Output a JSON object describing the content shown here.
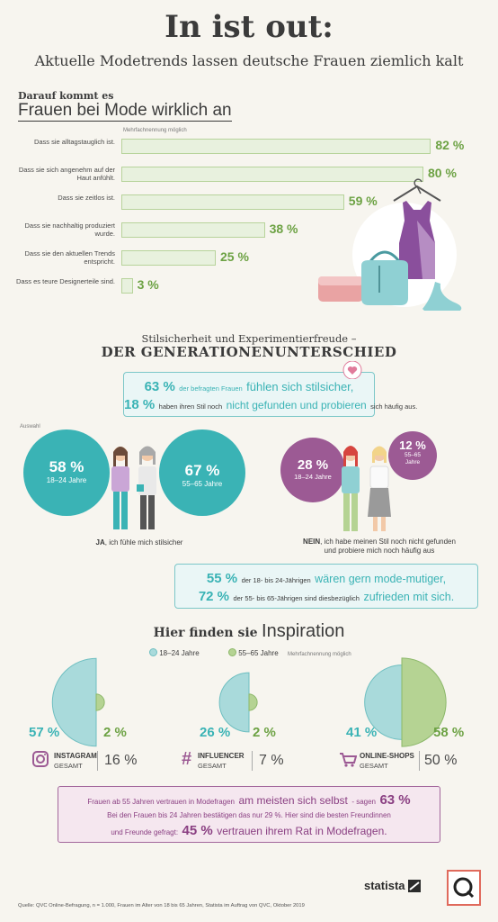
{
  "header": {
    "title": "In ist out:",
    "subtitle": "Aktuelle Modetrends lassen deutsche Frauen ziemlich kalt"
  },
  "section1": {
    "heading_small": "Darauf kommt es",
    "heading_large": "Frauen bei Mode wirklich an",
    "note": "Mehrfachnennung möglich"
  },
  "colors": {
    "green": "#6da244",
    "bar_fill": "#e8f1de",
    "teal": "#3ab3b5",
    "teal_light": "#a9dadb",
    "purple": "#9c5a94",
    "green_light": "#b5d393",
    "coral": "#e06a5c"
  },
  "chart_data": [
    {
      "type": "bar",
      "orientation": "horizontal",
      "title": "Frauen bei Mode wirklich an",
      "categories": [
        "Dass sie alltagstauglich ist.",
        "Dass sie sich angenehm auf der Haut anfühlt.",
        "Dass sie zeitlos ist.",
        "Dass sie nachhaltig produziert wurde.",
        "Dass sie den aktuellen Trends entspricht.",
        "Dass es teure Designerteile sind."
      ],
      "values": [
        82,
        80,
        59,
        38,
        25,
        3
      ],
      "labels": [
        "82 %",
        "80 %",
        "59 %",
        "38 %",
        "25 %",
        "3 %"
      ],
      "xlim": [
        0,
        100
      ]
    },
    {
      "type": "pie",
      "title": "Hier finden sie Inspiration",
      "categories": [
        "Instagram",
        "Influencer",
        "Online-Shops"
      ],
      "series": [
        {
          "name": "18-24 Jahre",
          "values": [
            57,
            26,
            41
          ],
          "labels": [
            "57 %",
            "26 %",
            "41 %"
          ]
        },
        {
          "name": "55-65 Jahre",
          "values": [
            2,
            2,
            58
          ],
          "labels": [
            "2 %",
            "2 %",
            "58 %"
          ]
        }
      ],
      "total_values": [
        16,
        7,
        50
      ],
      "total_labels": [
        "16 %",
        "7 %",
        "50 %"
      ]
    }
  ],
  "section2": {
    "heading_small": "Stilsicherheit und Experimentierfreude –",
    "heading_large": "DER GENERATIONENUNTERSCHIED",
    "callout": {
      "line1_pct": "63 %",
      "line1_small": "der befragten Frauen",
      "line1_big": "fühlen sich stilsicher,",
      "line2_pct": "18 %",
      "line2_small1": "haben ihren Stil noch",
      "line2_big": "nicht gefunden und probieren",
      "line2_small2": "sich häufig aus."
    },
    "auswahl": "Auswahl",
    "yes_young_pct": "58 %",
    "yes_young_age": "18–24 Jahre",
    "yes_old_pct": "67 %",
    "yes_old_age": "55–65 Jahre",
    "yes_caption_bold": "JA",
    "yes_caption": ", ich fühle mich stilsicher",
    "no_young_pct": "28 %",
    "no_young_age": "18–24 Jahre",
    "no_old_pct": "12 %",
    "no_old_age_1": "55–65",
    "no_old_age_2": "Jahre",
    "no_caption_bold": "NEIN",
    "no_caption_1": ", ich habe meinen Stil noch nicht gefunden",
    "no_caption_2": "und probiere mich noch häufig aus",
    "callout2": {
      "line1_pct": "55 %",
      "line1_small": "der 18- bis 24-Jährigen",
      "line1_big": "wären gern mode-mutiger,",
      "line2_pct": "72 %",
      "line2_small": "der 55- bis 65-Jährigen sind diesbezüglich",
      "line2_big": "zufrieden mit sich."
    }
  },
  "section3": {
    "heading_small": "Hier finden sie",
    "heading_large": "Inspiration",
    "legend_young": "18–24 Jahre",
    "legend_old": "55–65 Jahre",
    "note": "Mehrfachnennung möglich",
    "gesamt": "GESAMT",
    "instagram": "INSTAGRAM",
    "influencer": "INFLUENCER",
    "online": "ONLINE-SHOPS"
  },
  "bottom_box": {
    "l1a": "Frauen ab 55 Jahren vertrauen in Modefragen",
    "l1b": "am meisten sich selbst",
    "l1c": "- sagen",
    "l1pct": "63 %",
    "l2": "Bei den Frauen bis 24 Jahren bestätigen das nur 29 %. Hier sind die besten Freundinnen",
    "l3a": "und Freunde gefragt:",
    "l3pct": "45 %",
    "l3b": "vertrauen ihrem Rat in Modefragen."
  },
  "footer": {
    "brand": "statista",
    "source": "Quelle: QVC Online-Befragung, n = 1.000, Frauen im Alter von 18 bis 65 Jahren, Statista im Auftrag von QVC, Oktober 2019"
  }
}
